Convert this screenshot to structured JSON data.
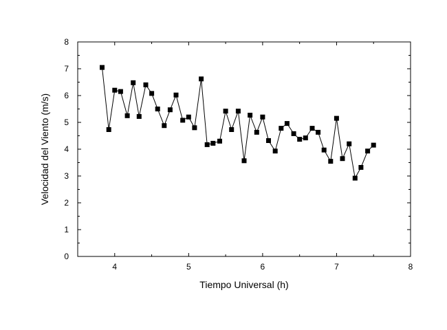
{
  "chart_data": {
    "type": "line",
    "title": "",
    "xlabel": "Tiempo Universal (h)",
    "ylabel": "Velocidad del Viento (m/s)",
    "xlim": [
      3.5,
      8
    ],
    "ylim": [
      0,
      8
    ],
    "x_ticks": [
      4,
      5,
      6,
      7,
      8
    ],
    "y_ticks": [
      0,
      1,
      2,
      3,
      4,
      5,
      6,
      7,
      8
    ],
    "grid": false,
    "legend": "none",
    "marker": "square",
    "line_color": "#000000",
    "marker_color": "#000000",
    "series": [
      {
        "x": [
          3.83,
          3.92,
          4.0,
          4.08,
          4.17,
          4.25,
          4.33,
          4.42,
          4.5,
          4.58,
          4.67,
          4.75,
          4.83,
          4.92,
          5.0,
          5.08,
          5.17,
          5.25,
          5.33,
          5.42,
          5.5,
          5.58,
          5.67,
          5.75,
          5.83,
          5.92,
          6.0,
          6.08,
          6.17,
          6.25,
          6.33,
          6.42,
          6.5,
          6.58,
          6.67,
          6.75,
          6.83,
          6.92,
          7.0,
          7.08,
          7.17,
          7.25,
          7.33,
          7.42,
          7.5
        ],
        "y": [
          7.05,
          4.73,
          6.2,
          6.15,
          5.25,
          6.48,
          5.22,
          6.4,
          6.08,
          5.5,
          4.88,
          5.47,
          6.02,
          5.08,
          5.2,
          4.8,
          6.62,
          4.17,
          4.22,
          4.3,
          5.42,
          4.73,
          5.42,
          3.57,
          5.27,
          4.63,
          5.2,
          4.32,
          3.93,
          4.78,
          4.96,
          4.58,
          4.37,
          4.42,
          4.78,
          4.63,
          3.97,
          3.55,
          5.15,
          3.65,
          4.2,
          2.92,
          3.32,
          3.93,
          4.15
        ]
      }
    ]
  }
}
